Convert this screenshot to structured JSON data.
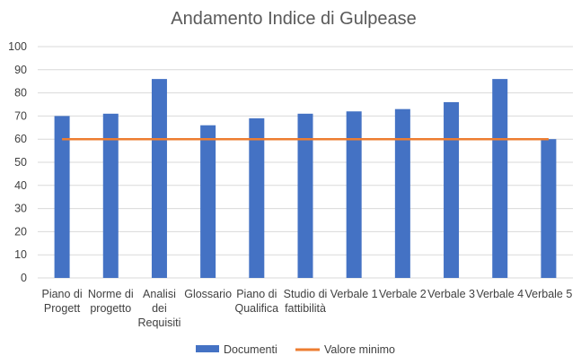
{
  "chart_data": {
    "type": "bar",
    "title": "Andamento Indice di Gulpease",
    "xlabel": "",
    "ylabel": "",
    "ylim": [
      0,
      100
    ],
    "yticks": [
      0,
      10,
      20,
      30,
      40,
      50,
      60,
      70,
      80,
      90,
      100
    ],
    "grid": true,
    "legend": "bottom",
    "categories": [
      [
        "Piano di",
        "Progett"
      ],
      [
        "Norme di",
        "progetto"
      ],
      [
        "Analisi",
        "dei",
        "Requisiti"
      ],
      [
        "Glossario"
      ],
      [
        "Piano di",
        "Qualifica"
      ],
      [
        "Studio di",
        "fattibilità"
      ],
      [
        "Verbale 1"
      ],
      [
        "Verbale 2"
      ],
      [
        "Verbale 3"
      ],
      [
        "Verbale 4"
      ],
      [
        "Verbale 5"
      ]
    ],
    "series": [
      {
        "name": "Documenti",
        "kind": "bar",
        "color": "#4472C4",
        "values": [
          70,
          71,
          86,
          66,
          69,
          71,
          72,
          73,
          76,
          86,
          60
        ]
      },
      {
        "name": "Valore minimo",
        "kind": "line",
        "color": "#ED7D31",
        "values": [
          60,
          60,
          60,
          60,
          60,
          60,
          60,
          60,
          60,
          60,
          60
        ]
      }
    ]
  }
}
